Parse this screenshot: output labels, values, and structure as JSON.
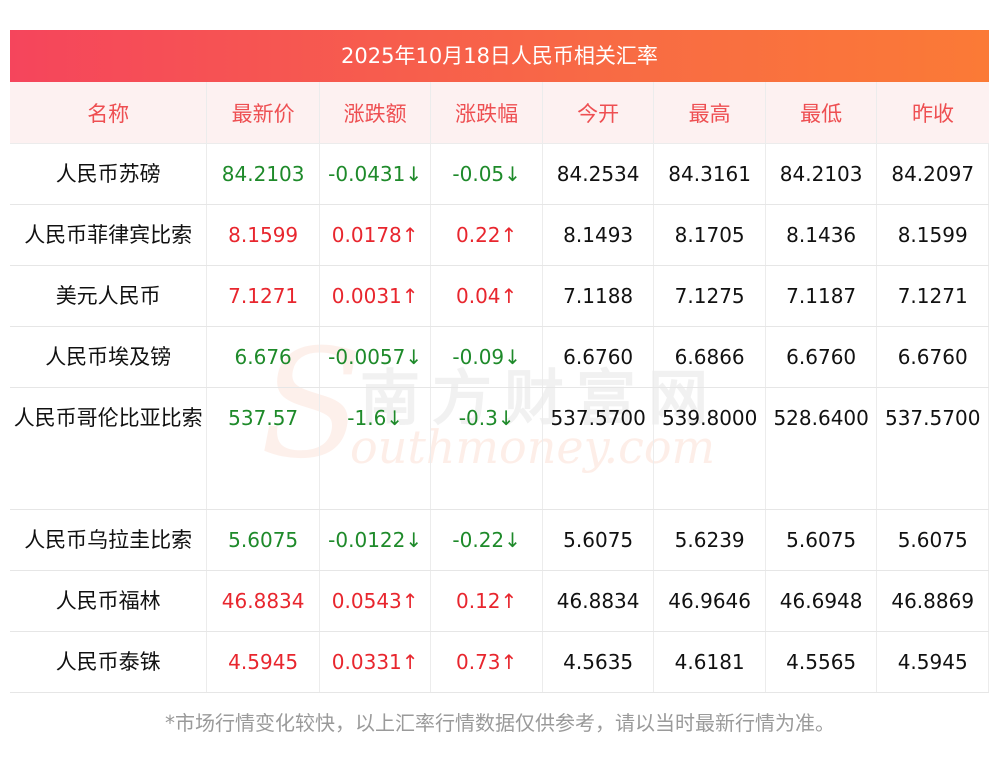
{
  "title": "2025年10月18日人民币相关汇率",
  "headers": [
    "名称",
    "最新价",
    "涨跌额",
    "涨跌幅",
    "今开",
    "最高",
    "最低",
    "昨收"
  ],
  "rows": [
    {
      "name": "人民币苏磅",
      "price": "84.2103",
      "change": "-0.0431↓",
      "pct": "-0.05↓",
      "open": "84.2534",
      "high": "84.3161",
      "low": "84.2103",
      "prev": "84.2097",
      "direction": "down"
    },
    {
      "name": "人民币菲律宾比索",
      "price": "8.1599",
      "change": "0.0178↑",
      "pct": "0.22↑",
      "open": "8.1493",
      "high": "8.1705",
      "low": "8.1436",
      "prev": "8.1599",
      "direction": "up"
    },
    {
      "name": "美元人民币",
      "price": "7.1271",
      "change": "0.0031↑",
      "pct": "0.04↑",
      "open": "7.1188",
      "high": "7.1275",
      "low": "7.1187",
      "prev": "7.1271",
      "direction": "up"
    },
    {
      "name": "人民币埃及镑",
      "price": "6.676",
      "change": "-0.0057↓",
      "pct": "-0.09↓",
      "open": "6.6760",
      "high": "6.6866",
      "low": "6.6760",
      "prev": "6.6760",
      "direction": "down"
    },
    {
      "name": "人民币哥伦比亚比索",
      "price": "537.57",
      "change": "-1.6↓",
      "pct": "-0.3↓",
      "open": "537.5700",
      "high": "539.8000",
      "low": "528.6400",
      "prev": "537.5700",
      "direction": "down"
    },
    {
      "name": "人民币乌拉圭比索",
      "price": "5.6075",
      "change": "-0.0122↓",
      "pct": "-0.22↓",
      "open": "5.6075",
      "high": "5.6239",
      "low": "5.6075",
      "prev": "5.6075",
      "direction": "down"
    },
    {
      "name": "人民币福林",
      "price": "46.8834",
      "change": "0.0543↑",
      "pct": "0.12↑",
      "open": "46.8834",
      "high": "46.9646",
      "low": "46.6948",
      "prev": "46.8869",
      "direction": "up"
    },
    {
      "name": "人民币泰铢",
      "price": "4.5945",
      "change": "0.0331↑",
      "pct": "0.73↑",
      "open": "4.5635",
      "high": "4.6181",
      "low": "4.5565",
      "prev": "4.5945",
      "direction": "up"
    }
  ],
  "footnote": "*市场行情变化较快，以上汇率行情数据仅供参考，请以当时最新行情为准。",
  "watermark": {
    "cn": "南方财富网",
    "en": "outhmoney.com",
    "s": "S"
  },
  "colors": {
    "up": "#e8262e",
    "down": "#1e8a2a",
    "header_text": "#ee4f52",
    "title_bg": "#f5455c"
  }
}
